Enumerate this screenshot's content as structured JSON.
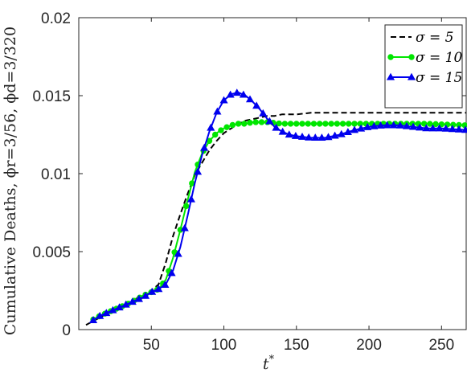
{
  "chart_data": {
    "type": "line",
    "xlabel_base": "t",
    "xlabel_sup": "*",
    "ylabel": "Cumulative Deaths, ϕr=3/56, ϕd=3/320",
    "xlim": [
      0,
      267
    ],
    "ylim": [
      0,
      0.02
    ],
    "xticks": [
      50,
      100,
      150,
      200,
      250
    ],
    "xtick_labels": [
      "50",
      "100",
      "150",
      "200",
      "250"
    ],
    "yticks": [
      0,
      0.005,
      0.01,
      0.015,
      0.02
    ],
    "ytick_labels": [
      "0",
      "0.005",
      "0.01",
      "0.015",
      "0.02"
    ],
    "legend_position": "top-right",
    "series": [
      {
        "name": "σ = 5",
        "color": "#000000",
        "style": "dashed",
        "marker": "none",
        "x": [
          5,
          10,
          15,
          20,
          25,
          30,
          35,
          40,
          45,
          50,
          55,
          60,
          65,
          70,
          75,
          80,
          85,
          90,
          95,
          100,
          105,
          110,
          115,
          120,
          125,
          130,
          135,
          140,
          150,
          160,
          180,
          200,
          220,
          240,
          267
        ],
        "y": [
          0.0003,
          0.00055,
          0.0008,
          0.00105,
          0.0013,
          0.00155,
          0.0018,
          0.002,
          0.0022,
          0.0025,
          0.0029,
          0.0043,
          0.006,
          0.0074,
          0.0087,
          0.0099,
          0.0107,
          0.0115,
          0.0121,
          0.0126,
          0.0129,
          0.0132,
          0.0134,
          0.0135,
          0.0136,
          0.0137,
          0.0137,
          0.0138,
          0.0138,
          0.0139,
          0.0139,
          0.0139,
          0.0139,
          0.0139,
          0.0139
        ]
      },
      {
        "name": "σ = 10",
        "color": "#00e600",
        "style": "solid",
        "marker": "circle",
        "x": [
          10,
          15,
          20,
          25,
          30,
          35,
          40,
          45,
          50,
          55,
          60,
          65,
          70,
          75,
          80,
          85,
          90,
          95,
          100,
          105,
          110,
          115,
          120,
          125,
          130,
          140,
          150,
          160,
          180,
          200,
          220,
          240,
          267
        ],
        "y": [
          0.00065,
          0.0009,
          0.0011,
          0.0013,
          0.0015,
          0.0017,
          0.00195,
          0.0022,
          0.0024,
          0.0026,
          0.0032,
          0.0046,
          0.0064,
          0.0083,
          0.0101,
          0.0113,
          0.0121,
          0.0126,
          0.0129,
          0.0131,
          0.0132,
          0.0132,
          0.0133,
          0.0133,
          0.0133,
          0.0132,
          0.0132,
          0.0132,
          0.0132,
          0.0132,
          0.0132,
          0.0132,
          0.0131
        ]
      },
      {
        "name": "σ = 15",
        "color": "#0000ee",
        "style": "solid",
        "marker": "triangle",
        "x": [
          10,
          15,
          20,
          25,
          30,
          35,
          40,
          45,
          50,
          55,
          60,
          65,
          70,
          75,
          80,
          85,
          90,
          95,
          100,
          105,
          110,
          115,
          120,
          125,
          130,
          135,
          140,
          145,
          150,
          160,
          170,
          180,
          190,
          200,
          210,
          220,
          230,
          240,
          250,
          267
        ],
        "y": [
          0.0006,
          0.0009,
          0.0011,
          0.0013,
          0.0015,
          0.0017,
          0.0019,
          0.0021,
          0.0024,
          0.0026,
          0.0029,
          0.0038,
          0.0053,
          0.0073,
          0.0094,
          0.0112,
          0.0127,
          0.0139,
          0.0147,
          0.0151,
          0.0152,
          0.015,
          0.0146,
          0.0141,
          0.0135,
          0.013,
          0.0127,
          0.0125,
          0.0124,
          0.0123,
          0.0123,
          0.0125,
          0.0128,
          0.013,
          0.0131,
          0.0131,
          0.013,
          0.0129,
          0.0129,
          0.0128
        ]
      }
    ]
  }
}
